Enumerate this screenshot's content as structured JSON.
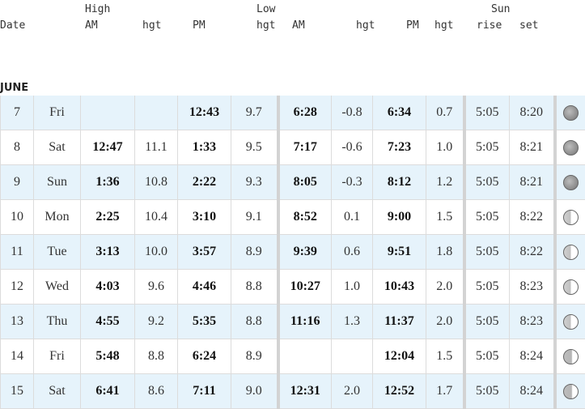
{
  "header": {
    "high": "High",
    "low": "Low",
    "sun": "Sun",
    "date": "Date",
    "high_am": "AM",
    "high_am_hgt": "hgt",
    "high_pm": "PM",
    "low_am_hgt_label": "hgt",
    "low_am": "AM",
    "low_am_hgt": "hgt",
    "low_pm": "PM",
    "low_pm_hgt": "hgt",
    "sunrise": "rise",
    "sunset": "set"
  },
  "month": "JUNE",
  "rows": [
    {
      "day": "7",
      "dow": "Fri",
      "high_am": "",
      "high_am_hgt": "",
      "high_pm": "12:43",
      "high_pm_hgt": "9.7",
      "low_am": "6:28",
      "low_am_hgt": "-0.8",
      "low_pm": "6:34",
      "low_pm_hgt": "0.7",
      "rise": "5:05",
      "set": "8:20",
      "moon": "waning-gibbous-icon",
      "moon_class": "waning"
    },
    {
      "day": "8",
      "dow": "Sat",
      "high_am": "12:47",
      "high_am_hgt": "11.1",
      "high_pm": "1:33",
      "high_pm_hgt": "9.5",
      "low_am": "7:17",
      "low_am_hgt": "-0.6",
      "low_pm": "7:23",
      "low_pm_hgt": "1.0",
      "rise": "5:05",
      "set": "8:21",
      "moon": "waning-gibbous-icon",
      "moon_class": "waning"
    },
    {
      "day": "9",
      "dow": "Sun",
      "high_am": "1:36",
      "high_am_hgt": "10.8",
      "high_pm": "2:22",
      "high_pm_hgt": "9.3",
      "low_am": "8:05",
      "low_am_hgt": "-0.3",
      "low_pm": "8:12",
      "low_pm_hgt": "1.2",
      "rise": "5:05",
      "set": "8:21",
      "moon": "waning-gibbous-icon",
      "moon_class": "waning"
    },
    {
      "day": "10",
      "dow": "Mon",
      "high_am": "2:25",
      "high_am_hgt": "10.4",
      "high_pm": "3:10",
      "high_pm_hgt": "9.1",
      "low_am": "8:52",
      "low_am_hgt": "0.1",
      "low_pm": "9:00",
      "low_pm_hgt": "1.5",
      "rise": "5:05",
      "set": "8:22",
      "moon": "half-moon-icon",
      "moon_class": "first-quarter"
    },
    {
      "day": "11",
      "dow": "Tue",
      "high_am": "3:13",
      "high_am_hgt": "10.0",
      "high_pm": "3:57",
      "high_pm_hgt": "8.9",
      "low_am": "9:39",
      "low_am_hgt": "0.6",
      "low_pm": "9:51",
      "low_pm_hgt": "1.8",
      "rise": "5:05",
      "set": "8:22",
      "moon": "half-moon-icon",
      "moon_class": "first-quarter"
    },
    {
      "day": "12",
      "dow": "Wed",
      "high_am": "4:03",
      "high_am_hgt": "9.6",
      "high_pm": "4:46",
      "high_pm_hgt": "8.8",
      "low_am": "10:27",
      "low_am_hgt": "1.0",
      "low_pm": "10:43",
      "low_pm_hgt": "2.0",
      "rise": "5:05",
      "set": "8:23",
      "moon": "half-moon-icon",
      "moon_class": "first-quarter"
    },
    {
      "day": "13",
      "dow": "Thu",
      "high_am": "4:55",
      "high_am_hgt": "9.2",
      "high_pm": "5:35",
      "high_pm_hgt": "8.8",
      "low_am": "11:16",
      "low_am_hgt": "1.3",
      "low_pm": "11:37",
      "low_pm_hgt": "2.0",
      "rise": "5:05",
      "set": "8:23",
      "moon": "half-moon-icon",
      "moon_class": "first-quarter"
    },
    {
      "day": "14",
      "dow": "Fri",
      "high_am": "5:48",
      "high_am_hgt": "8.8",
      "high_pm": "6:24",
      "high_pm_hgt": "8.9",
      "low_am": "",
      "low_am_hgt": "",
      "low_pm": "12:04",
      "low_pm_hgt": "1.5",
      "rise": "5:05",
      "set": "8:24",
      "moon": "crescent-moon-icon",
      "moon_class": "crescent"
    },
    {
      "day": "15",
      "dow": "Sat",
      "high_am": "6:41",
      "high_am_hgt": "8.6",
      "high_pm": "7:11",
      "high_pm_hgt": "9.0",
      "low_am": "12:31",
      "low_am_hgt": "2.0",
      "low_pm": "12:52",
      "low_pm_hgt": "1.7",
      "rise": "5:05",
      "set": "8:24",
      "moon": "crescent-moon-icon",
      "moon_class": "crescent"
    }
  ]
}
